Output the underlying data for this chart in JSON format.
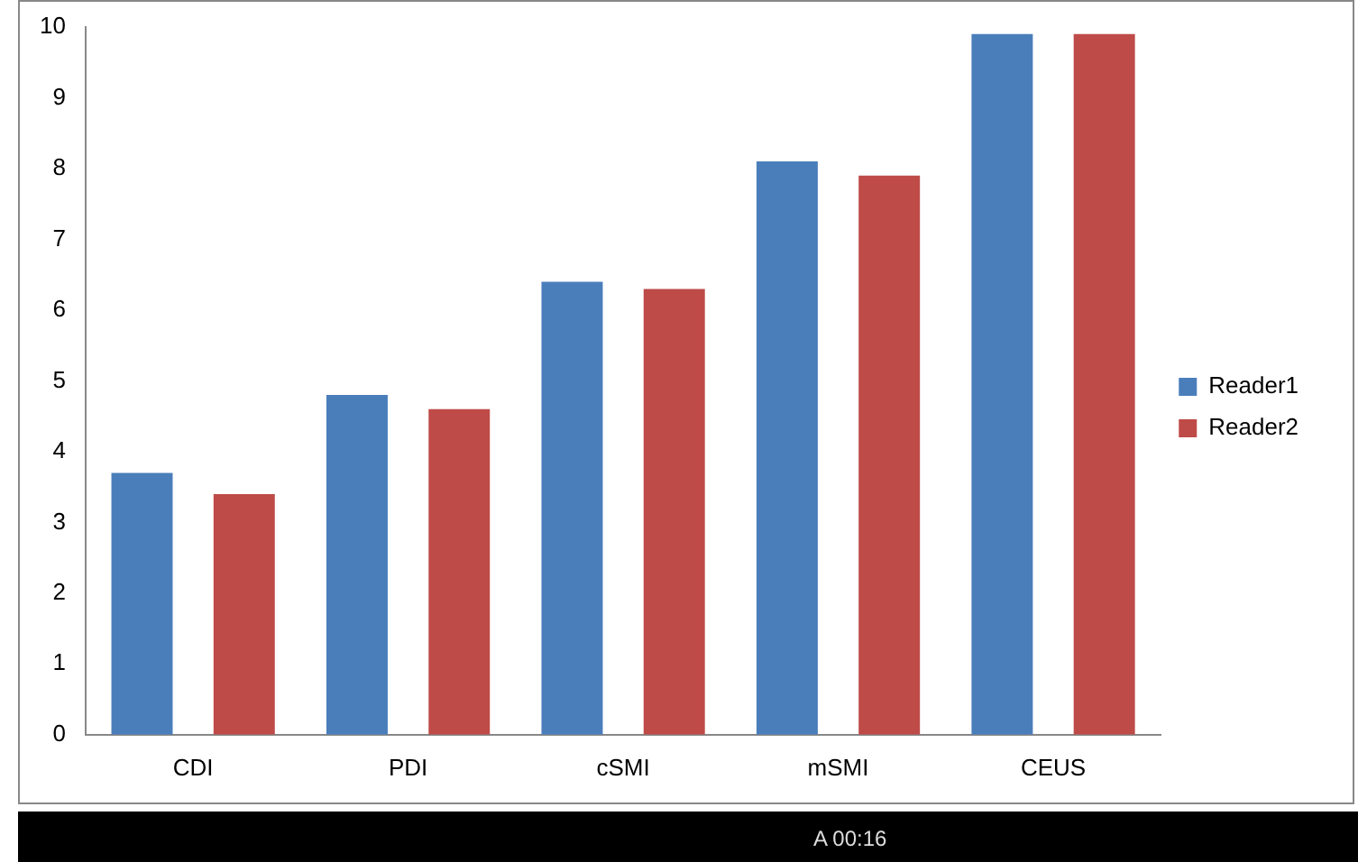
{
  "chart_data": {
    "type": "bar",
    "categories": [
      "CDI",
      "PDI",
      "cSMI",
      "mSMI",
      "CEUS"
    ],
    "series": [
      {
        "name": "Reader1",
        "color": "#4a7ebb",
        "values": [
          3.7,
          4.8,
          6.4,
          8.1,
          9.9
        ]
      },
      {
        "name": "Reader2",
        "color": "#be4b48",
        "values": [
          3.4,
          4.6,
          6.3,
          7.9,
          9.9
        ]
      }
    ],
    "ylim": [
      0,
      10
    ],
    "yticks": [
      0,
      1,
      2,
      3,
      4,
      5,
      6,
      7,
      8,
      9,
      10
    ],
    "grid": false,
    "legend": "right",
    "annotations": [
      "A 00:16"
    ]
  }
}
